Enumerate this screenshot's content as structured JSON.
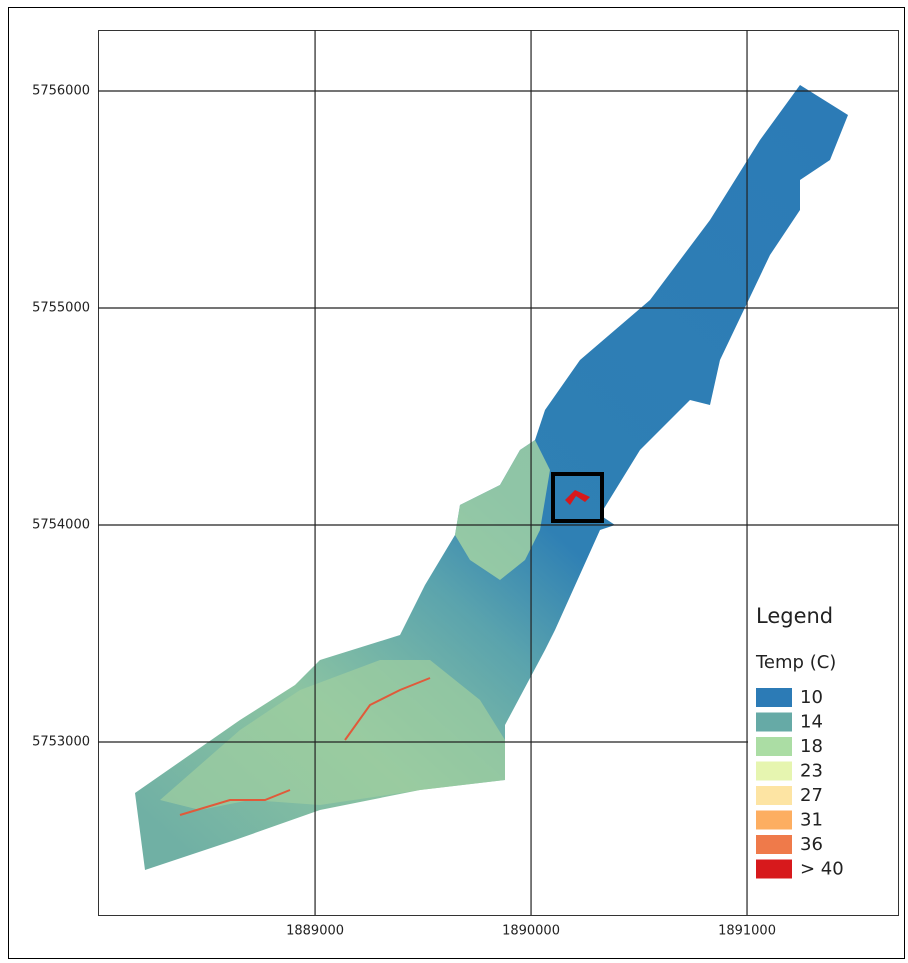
{
  "map": {
    "xlim": [
      1887995,
      1891699
    ],
    "ylim": [
      5752203,
      5756281
    ],
    "xticks": [
      1889000,
      1890000,
      1891000
    ],
    "yticks": [
      5756000,
      5755000,
      5754000,
      5753000
    ],
    "legend": {
      "title": "Legend",
      "subtitle": "Temp (C)",
      "items": [
        {
          "label": "10",
          "color": "#2c7bb6"
        },
        {
          "label": "14",
          "color": "#66aaa6"
        },
        {
          "label": "18",
          "color": "#abdda4"
        },
        {
          "label": "23",
          "color": "#e6f5b0"
        },
        {
          "label": "27",
          "color": "#fde4a3"
        },
        {
          "label": "31",
          "color": "#fdae61"
        },
        {
          "label": "36",
          "color": "#ef7a4a"
        },
        {
          "label": "> 40",
          "color": "#d7191c"
        }
      ]
    }
  }
}
